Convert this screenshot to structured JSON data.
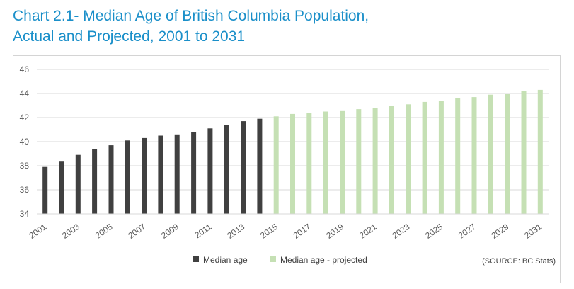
{
  "title_line1": "Chart 2.1- Median Age of British Columbia Population,",
  "title_line2": "Actual and Projected, 2001 to 2031",
  "source": "(SOURCE: BC Stats)",
  "colors": {
    "actual": "#404040",
    "projected": "#c5e0b4",
    "grid": "#d9d9d9",
    "title": "#1a8fc9"
  },
  "chart_data": {
    "type": "bar",
    "title": "Chart 2.1- Median Age of British Columbia Population, Actual and Projected, 2001 to 2031",
    "xlabel": "",
    "ylabel": "",
    "ylim": [
      34,
      46
    ],
    "yticks": [
      "34",
      "36",
      "38",
      "40",
      "42",
      "44",
      "46"
    ],
    "grid": true,
    "legend_position": "bottom",
    "categories": [
      2001,
      2002,
      2003,
      2004,
      2005,
      2006,
      2007,
      2008,
      2009,
      2010,
      2011,
      2012,
      2013,
      2014,
      2015,
      2016,
      2017,
      2018,
      2019,
      2020,
      2021,
      2022,
      2023,
      2024,
      2025,
      2026,
      2027,
      2028,
      2029,
      2030,
      2031
    ],
    "xtick_labels": [
      "2001",
      "2003",
      "2005",
      "2007",
      "2009",
      "2011",
      "2013",
      "2015",
      "2017",
      "2019",
      "2021",
      "2023",
      "2025",
      "2027",
      "2029",
      "2031"
    ],
    "series": [
      {
        "name": "Median age",
        "values": [
          37.9,
          38.4,
          38.9,
          39.4,
          39.7,
          40.1,
          40.3,
          40.5,
          40.6,
          40.8,
          41.1,
          41.4,
          41.7,
          41.9,
          null,
          null,
          null,
          null,
          null,
          null,
          null,
          null,
          null,
          null,
          null,
          null,
          null,
          null,
          null,
          null,
          null
        ]
      },
      {
        "name": "Median age - projected",
        "values": [
          null,
          null,
          null,
          null,
          null,
          null,
          null,
          null,
          null,
          null,
          null,
          null,
          null,
          null,
          42.1,
          42.3,
          42.4,
          42.5,
          42.6,
          42.7,
          42.8,
          43.0,
          43.1,
          43.3,
          43.4,
          43.6,
          43.7,
          43.9,
          44.0,
          44.2,
          44.3
        ]
      }
    ]
  }
}
